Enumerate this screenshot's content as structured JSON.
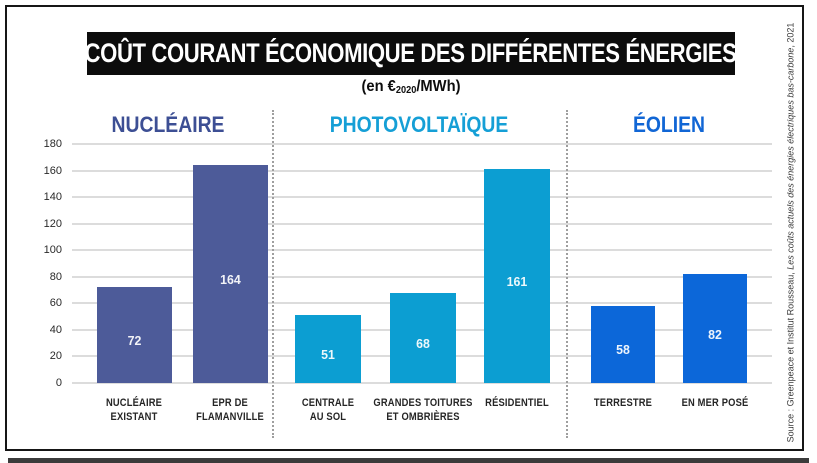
{
  "title": "COÛT COURANT ÉCONOMIQUE DES DIFFÉRENTES ÉNERGIES",
  "subtitle": {
    "prefix": "(en €",
    "sub": "2020",
    "suffix": "/MWh)"
  },
  "source": {
    "prefix": "Source : Greenpeace et Institut Rousseau, ",
    "work": "Les coûts actuels des énergies électriques bas-carbone",
    "suffix": ", 2021"
  },
  "chart_data": {
    "type": "bar",
    "title": "COÛT COURANT ÉCONOMIQUE DES DIFFÉRENTES ÉNERGIES",
    "subtitle": "(en €2020/MWh)",
    "ylabel": "€2020/MWh",
    "ylim": [
      0,
      180
    ],
    "ytick_step": 20,
    "grid": true,
    "legend": "none",
    "groups": [
      {
        "name": "NUCLÉAIRE",
        "color": "#4d5b99",
        "header_color": "#3d4f94",
        "categories": [
          "NUCLÉAIRE EXISTANT",
          "EPR DE FLAMANVILLE"
        ],
        "labels": [
          "NUCLÉAIRE\nEXISTANT",
          "EPR DE\nFLAMANVILLE"
        ],
        "values": [
          72,
          164
        ]
      },
      {
        "name": "PHOTOVOLTAÏQUE",
        "color": "#0c9ed2",
        "header_color": "#159fd6",
        "categories": [
          "CENTRALE AU SOL",
          "GRANDES TOITURES ET OMBRIÈRES",
          "RÉSIDENTIEL"
        ],
        "labels": [
          "CENTRALE\nAU SOL",
          "GRANDES TOITURES\nET OMBRIÈRES",
          "RÉSIDENTIEL"
        ],
        "values": [
          51,
          68,
          161
        ]
      },
      {
        "name": "ÉOLIEN",
        "color": "#0c67d9",
        "header_color": "#1166d5",
        "categories": [
          "TERRESTRE",
          "EN MER POSÉ"
        ],
        "labels": [
          "TERRESTRE",
          "EN MER POSÉ"
        ],
        "values": [
          58,
          82
        ]
      }
    ]
  }
}
